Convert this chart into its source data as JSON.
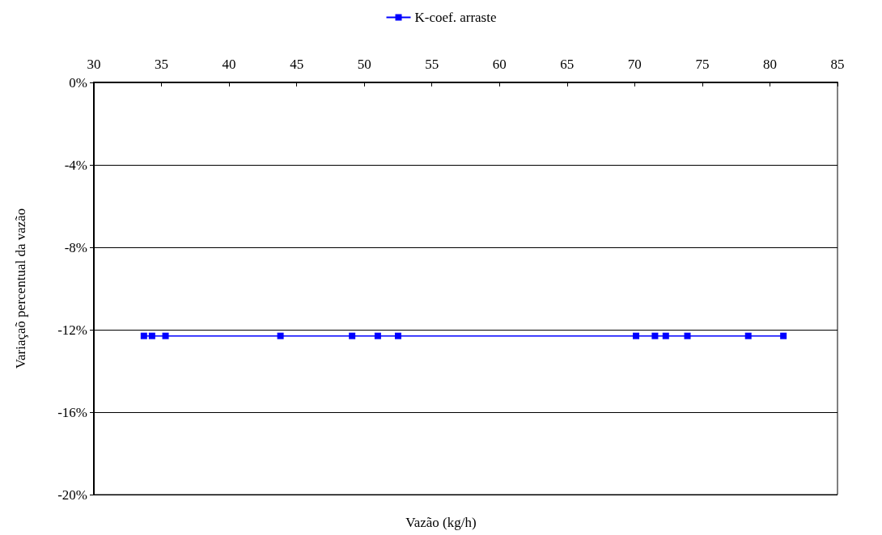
{
  "chart_data": {
    "type": "line",
    "xlabel": "Vazão (kg/h)",
    "ylabel": "Variaçaõ percentual da vazão",
    "x": [
      33.7,
      34.3,
      35.3,
      43.8,
      49.1,
      51.0,
      52.5,
      70.1,
      71.5,
      72.3,
      73.9,
      78.4,
      81.0
    ],
    "series": [
      {
        "name": "K-coef. arraste",
        "color": "#0000ff",
        "values": [
          -12.3,
          -12.3,
          -12.3,
          -12.3,
          -12.3,
          -12.3,
          -12.3,
          -12.3,
          -12.3,
          -12.3,
          -12.3,
          -12.3,
          -12.3
        ]
      }
    ],
    "xlim": [
      30,
      85
    ],
    "xticks": [
      30,
      35,
      40,
      45,
      50,
      55,
      60,
      65,
      70,
      75,
      80,
      85
    ],
    "ylim": [
      -20,
      0
    ],
    "yticks": [
      {
        "value": -20,
        "label": "-20%"
      },
      {
        "value": -16,
        "label": "-16%"
      },
      {
        "value": -12,
        "label": "-12%"
      },
      {
        "value": -8,
        "label": "-8%"
      },
      {
        "value": -4,
        "label": "-4%"
      },
      {
        "value": 0,
        "label": "0%"
      }
    ],
    "grid": "y",
    "legend": "top",
    "marker": "square",
    "line_style": "solid"
  }
}
